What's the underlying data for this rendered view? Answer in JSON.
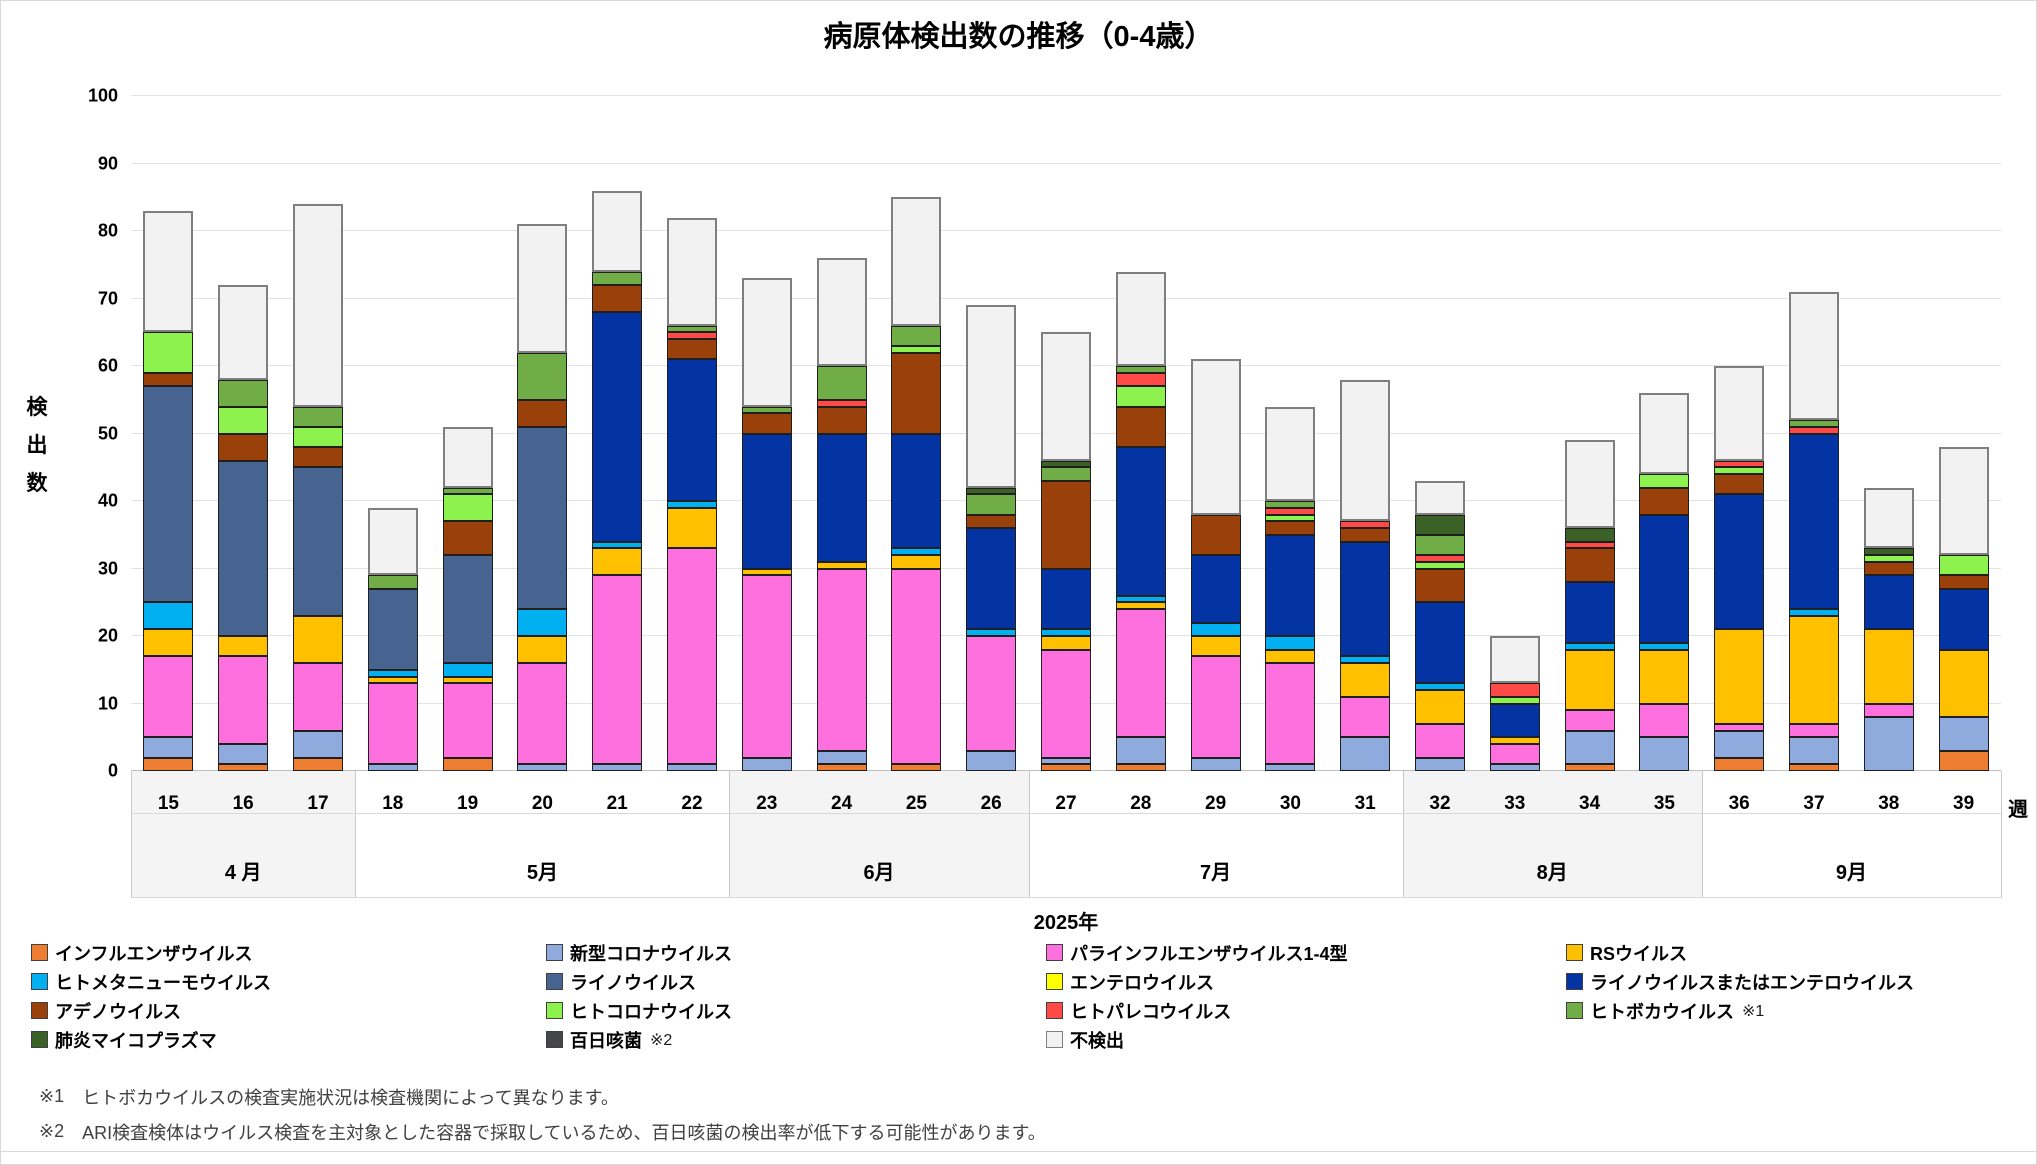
{
  "title": "病原体検出数の推移（0-4歳）",
  "y_axis": {
    "title": "検出数",
    "min": 0,
    "max": 100,
    "step": 10
  },
  "x_axis": {
    "unit_label": "週",
    "year_label": "2025年"
  },
  "chart_data": {
    "type": "bar",
    "stacked": true,
    "title": "病原体検出数の推移（0-4歳）",
    "xlabel": "週",
    "ylabel": "検出数",
    "ylim": [
      0,
      100
    ],
    "grid": true,
    "legend_position": "bottom",
    "categories": [
      15,
      16,
      17,
      18,
      19,
      20,
      21,
      22,
      23,
      24,
      25,
      26,
      27,
      28,
      29,
      30,
      31,
      32,
      33,
      34,
      35,
      36,
      37,
      38,
      39
    ],
    "month_groups": [
      {
        "label": "4 月",
        "from": 15,
        "to": 17,
        "shaded": true
      },
      {
        "label": "5月",
        "from": 18,
        "to": 22,
        "shaded": false
      },
      {
        "label": "6月",
        "from": 23,
        "to": 26,
        "shaded": true
      },
      {
        "label": "7月",
        "from": 27,
        "to": 31,
        "shaded": false
      },
      {
        "label": "8月",
        "from": 32,
        "to": 35,
        "shaded": true
      },
      {
        "label": "9月",
        "from": 36,
        "to": 39,
        "shaded": false
      }
    ],
    "series": [
      {
        "name": "インフルエンザウイルス",
        "color": "#ED7D31",
        "values": [
          2,
          1,
          2,
          0,
          2,
          0,
          0,
          0,
          0,
          1,
          1,
          0,
          1,
          1,
          0,
          0,
          0,
          0,
          0,
          1,
          0,
          2,
          1,
          0,
          3
        ]
      },
      {
        "name": "新型コロナウイルス",
        "color": "#8FAADC",
        "values": [
          3,
          3,
          4,
          1,
          0,
          1,
          1,
          1,
          2,
          2,
          0,
          3,
          1,
          4,
          2,
          1,
          5,
          2,
          1,
          5,
          5,
          4,
          4,
          8,
          5
        ]
      },
      {
        "name": "パラインフルエンザウイルス1-4型",
        "color": "#FF70DF",
        "values": [
          12,
          13,
          10,
          12,
          11,
          15,
          28,
          32,
          27,
          27,
          29,
          17,
          16,
          19,
          15,
          15,
          6,
          5,
          3,
          3,
          5,
          1,
          2,
          2,
          0
        ]
      },
      {
        "name": "RSウイルス",
        "color": "#FFC000",
        "values": [
          4,
          3,
          7,
          1,
          1,
          4,
          4,
          6,
          1,
          1,
          2,
          0,
          2,
          1,
          3,
          2,
          5,
          5,
          1,
          9,
          8,
          14,
          16,
          11,
          10
        ]
      },
      {
        "name": "ヒトメタニューモウイルス",
        "color": "#00B0F0",
        "values": [
          4,
          0,
          0,
          1,
          2,
          4,
          1,
          1,
          0,
          0,
          1,
          1,
          1,
          1,
          2,
          2,
          1,
          1,
          0,
          1,
          1,
          0,
          1,
          0,
          0
        ]
      },
      {
        "name": "ライノウイルス",
        "color": "#47638F",
        "values": [
          32,
          26,
          22,
          12,
          16,
          27,
          0,
          0,
          0,
          0,
          0,
          0,
          0,
          0,
          0,
          0,
          0,
          0,
          0,
          0,
          0,
          0,
          0,
          0,
          0
        ]
      },
      {
        "name": "エンテロウイルス",
        "color": "#FFFF00",
        "values": [
          0,
          0,
          0,
          0,
          0,
          0,
          0,
          0,
          0,
          0,
          0,
          0,
          0,
          0,
          0,
          0,
          0,
          0,
          0,
          0,
          0,
          0,
          0,
          0,
          0
        ]
      },
      {
        "name": "ライノウイルスまたはエンテロウイルス",
        "color": "#0434A3",
        "values": [
          0,
          0,
          0,
          0,
          0,
          0,
          34,
          21,
          20,
          19,
          17,
          15,
          9,
          22,
          10,
          15,
          17,
          12,
          5,
          9,
          19,
          20,
          26,
          8,
          9
        ]
      },
      {
        "name": "アデノウイルス",
        "color": "#9A400A",
        "values": [
          2,
          4,
          3,
          0,
          5,
          4,
          4,
          3,
          3,
          4,
          12,
          2,
          13,
          6,
          6,
          2,
          2,
          5,
          0,
          5,
          4,
          3,
          0,
          2,
          2
        ]
      },
      {
        "name": "ヒトコロナウイルス",
        "color": "#8DF24D",
        "values": [
          6,
          4,
          3,
          0,
          4,
          0,
          0,
          0,
          0,
          0,
          1,
          0,
          0,
          3,
          0,
          1,
          0,
          1,
          1,
          0,
          2,
          1,
          0,
          1,
          3
        ]
      },
      {
        "name": "ヒトパレコウイルス",
        "color": "#FF4A47",
        "values": [
          0,
          0,
          0,
          0,
          0,
          0,
          0,
          1,
          0,
          1,
          0,
          0,
          0,
          2,
          0,
          1,
          1,
          1,
          2,
          1,
          0,
          1,
          1,
          0,
          0
        ]
      },
      {
        "name": "ヒトボカウイルス",
        "legend_note": "※1",
        "color": "#70AD47",
        "values": [
          0,
          4,
          3,
          2,
          1,
          7,
          2,
          1,
          1,
          5,
          3,
          3,
          2,
          1,
          0,
          1,
          0,
          3,
          0,
          0,
          0,
          0,
          1,
          0,
          0
        ]
      },
      {
        "name": "肺炎マイコプラズマ",
        "color": "#3C6126",
        "values": [
          0,
          0,
          0,
          0,
          0,
          0,
          0,
          0,
          0,
          0,
          0,
          1,
          1,
          0,
          0,
          0,
          0,
          3,
          0,
          2,
          0,
          0,
          0,
          1,
          0
        ]
      },
      {
        "name": "百日咳菌",
        "legend_note": "※2",
        "color": "#44464A",
        "values": [
          0,
          0,
          0,
          0,
          0,
          0,
          0,
          0,
          0,
          0,
          0,
          0,
          0,
          0,
          0,
          0,
          0,
          0,
          0,
          0,
          0,
          0,
          0,
          0,
          0
        ]
      },
      {
        "name": "不検出",
        "color": "#F2F2F2",
        "border": "#7F7F7F",
        "values": [
          18,
          14,
          30,
          10,
          9,
          19,
          12,
          16,
          19,
          16,
          19,
          27,
          19,
          14,
          23,
          14,
          21,
          5,
          7,
          13,
          12,
          14,
          19,
          9,
          16
        ]
      }
    ]
  },
  "footnotes": [
    {
      "marker": "※1",
      "text": "ヒトボカウイルスの検査実施状況は検査機関によって異なります。"
    },
    {
      "marker": "※2",
      "text": "ARI検査検体はウイルス検査を主対象とした容器で採取しているため、百日咳菌の検出率が低下する可能性があります。"
    }
  ]
}
